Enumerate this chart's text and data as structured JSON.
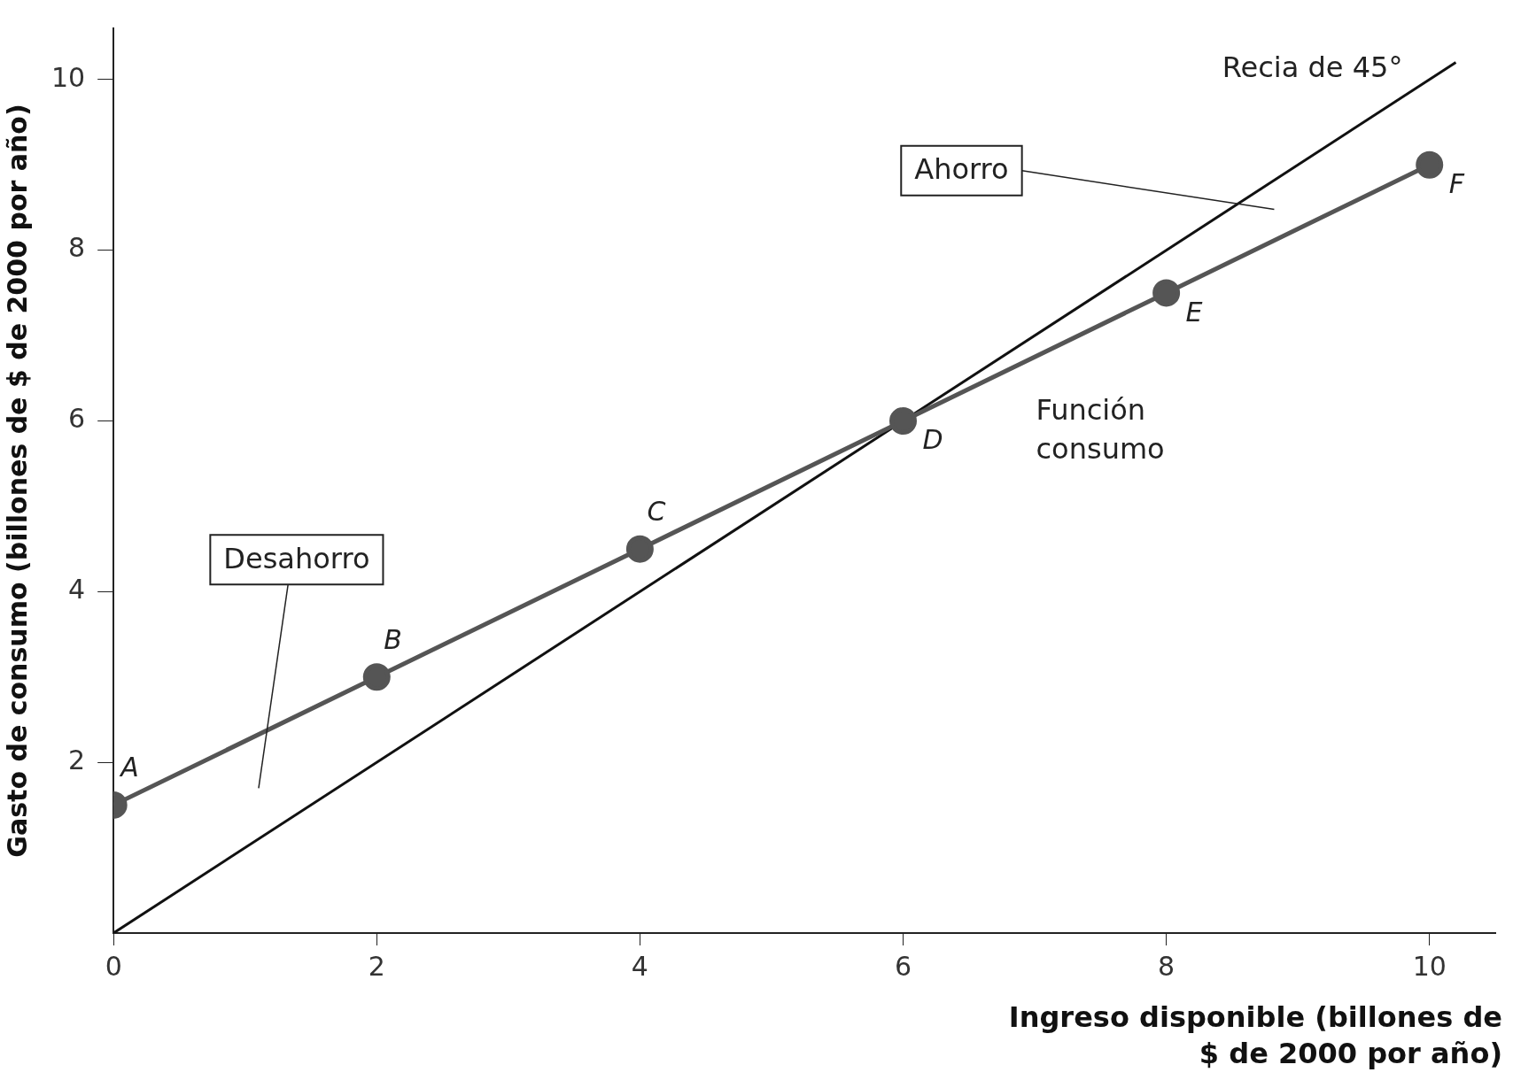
{
  "chart_data": {
    "type": "line",
    "xlabel": "Ingreso disponible (billones de $ de 2000 por año)",
    "ylabel": "Gasto de consumo (billones de $ de 2000 por año)",
    "xlim": [
      0,
      10.5
    ],
    "ylim": [
      0,
      10.6
    ],
    "xticks": [
      0,
      2,
      4,
      6,
      8,
      10
    ],
    "yticks": [
      2,
      4,
      6,
      8,
      10
    ],
    "grid": false,
    "legend": false,
    "marker": "circle",
    "series": [
      {
        "name": "Función consumo",
        "color": "#555555",
        "x": [
          0,
          2,
          4,
          6,
          8,
          10
        ],
        "values": [
          1.5,
          3,
          4.5,
          6,
          7.5,
          9
        ]
      },
      {
        "name": "Recia de 45°",
        "color": "#111111",
        "x": [
          0,
          10.2
        ],
        "values": [
          0,
          10.2
        ],
        "marker": "none"
      }
    ],
    "annotations": [
      {
        "text": "A",
        "x": 0,
        "y": 1.5
      },
      {
        "text": "B",
        "x": 2,
        "y": 3
      },
      {
        "text": "C",
        "x": 4,
        "y": 4.5
      },
      {
        "text": "D",
        "x": 6,
        "y": 6
      },
      {
        "text": "E",
        "x": 8,
        "y": 7.5
      },
      {
        "text": "F",
        "x": 10,
        "y": 9
      },
      "Ahorro",
      "Desahorro"
    ]
  }
}
